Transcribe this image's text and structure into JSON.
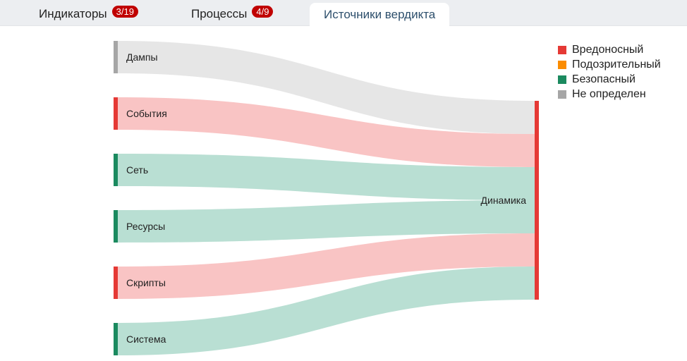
{
  "tabs": [
    {
      "label": "Индикаторы",
      "badge": "3/19",
      "active": false
    },
    {
      "label": "Процессы",
      "badge": "4/9",
      "active": false
    },
    {
      "label": "Источники вердикта",
      "active": true
    }
  ],
  "colors": {
    "malicious": "#e53935",
    "suspicious": "#fb8c00",
    "safe": "#1b8a5f",
    "undefined": "#a6a6a6"
  },
  "legend": [
    {
      "label": "Вредоносный",
      "color": "#e53935"
    },
    {
      "label": "Подозрительный",
      "color": "#fb8c00"
    },
    {
      "label": "Безопасный",
      "color": "#1b8a5f"
    },
    {
      "label": "Не определен",
      "color": "#a6a6a6"
    }
  ],
  "chart_data": {
    "type": "sankey",
    "target": {
      "label": "Динамика",
      "verdict": "malicious"
    },
    "sources": [
      {
        "label": "Дампы",
        "verdict": "undefined",
        "value": 1
      },
      {
        "label": "События",
        "verdict": "malicious",
        "value": 1
      },
      {
        "label": "Сеть",
        "verdict": "safe",
        "value": 1
      },
      {
        "label": "Ресурсы",
        "verdict": "safe",
        "value": 1
      },
      {
        "label": "Скрипты",
        "verdict": "malicious",
        "value": 1
      },
      {
        "label": "Система",
        "verdict": "safe",
        "value": 1
      }
    ]
  }
}
